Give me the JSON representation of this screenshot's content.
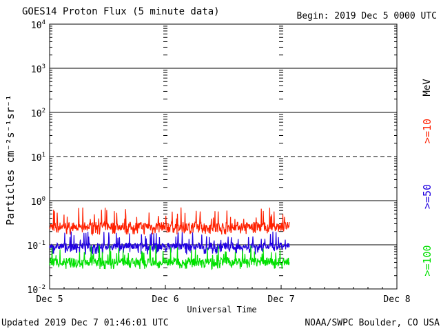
{
  "header": {
    "title": "GOES14 Proton Flux (5 minute data)",
    "begin": "Begin: 2019 Dec 5 0000 UTC"
  },
  "footer": {
    "updated": "Updated 2019 Dec  7 01:46:01 UTC",
    "source": "NOAA/SWPC Boulder, CO USA"
  },
  "legend": {
    "unit": "MeV",
    "entries": [
      {
        "label": ">=10",
        "color": "#ff2000"
      },
      {
        "label": ">=50",
        "color": "#2000e0"
      },
      {
        "label": ">=100",
        "color": "#00e000"
      }
    ]
  },
  "chart_data": {
    "type": "line",
    "title": "GOES14 Proton Flux (5 minute data)",
    "xlabel": "Universal Time",
    "ylabel": "Particles cm⁻²s⁻¹sr⁻¹",
    "y_scale": "log",
    "ylim": [
      0.01,
      10000
    ],
    "xlim_days": [
      0,
      3
    ],
    "x_ticks": [
      "Dec 5",
      "Dec 6",
      "Dec 7",
      "Dec 8"
    ],
    "y_tick_labels": [
      {
        "base": "10",
        "exp": "-2"
      },
      {
        "base": "10",
        "exp": "-1"
      },
      {
        "base": "10",
        "exp": "0"
      },
      {
        "base": "10",
        "exp": "1"
      },
      {
        "base": "10",
        "exp": "2"
      },
      {
        "base": "10",
        "exp": "3"
      },
      {
        "base": "10",
        "exp": "4"
      }
    ],
    "reference_lines": [
      {
        "value": 0.1,
        "style": "solid"
      },
      {
        "value": 1,
        "style": "solid"
      },
      {
        "value": 10,
        "style": "dashed"
      },
      {
        "value": 100,
        "style": "solid"
      },
      {
        "value": 1000,
        "style": "solid"
      }
    ],
    "data_end_day": 2.07,
    "series": [
      {
        "name": ">=10 MeV",
        "color": "#ff2000",
        "typical": 0.25,
        "range": [
          0.17,
          0.7
        ]
      },
      {
        "name": ">=50 MeV",
        "color": "#2000e0",
        "typical": 0.09,
        "range": [
          0.06,
          0.2
        ]
      },
      {
        "name": ">=100 MeV",
        "color": "#00e000",
        "typical": 0.04,
        "range": [
          0.028,
          0.1
        ]
      }
    ]
  }
}
